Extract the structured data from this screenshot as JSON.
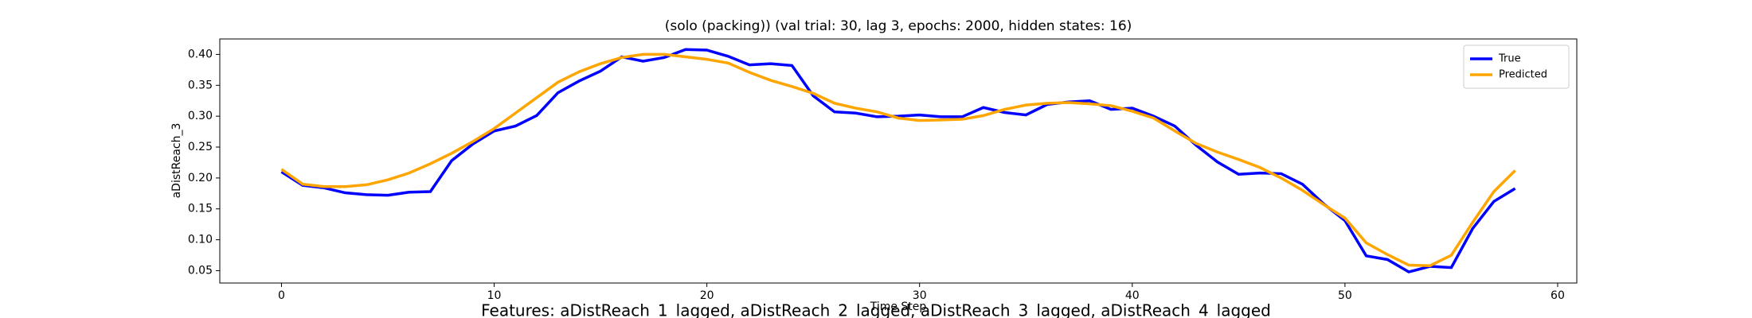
{
  "chart_data": {
    "type": "line",
    "title": "(solo (packing)) (val trial: 30, lag 3, epochs: 2000, hidden states: 16)",
    "xlabel": "Time Step",
    "ylabel": "aDistReach_3",
    "footer": "Features: aDistReach_1_lagged, aDistReach_2_lagged, aDistReach_3_lagged, aDistReach_4_lagged",
    "x": [
      0,
      1,
      2,
      3,
      4,
      5,
      6,
      7,
      8,
      9,
      10,
      11,
      12,
      13,
      14,
      15,
      16,
      17,
      18,
      19,
      20,
      21,
      22,
      23,
      24,
      25,
      26,
      27,
      28,
      29,
      30,
      31,
      32,
      33,
      34,
      35,
      36,
      37,
      38,
      39,
      40,
      41,
      42,
      43,
      44,
      45,
      46,
      47,
      48,
      49,
      50,
      51,
      52,
      53,
      54,
      55,
      56,
      57,
      58
    ],
    "series": [
      {
        "name": "True",
        "color": "#0000ff",
        "values": [
          0.21,
          0.188,
          0.184,
          0.176,
          0.173,
          0.172,
          0.177,
          0.178,
          0.228,
          0.255,
          0.276,
          0.284,
          0.301,
          0.338,
          0.357,
          0.373,
          0.396,
          0.389,
          0.395,
          0.408,
          0.407,
          0.397,
          0.383,
          0.385,
          0.382,
          0.333,
          0.307,
          0.305,
          0.299,
          0.3,
          0.302,
          0.299,
          0.299,
          0.314,
          0.306,
          0.302,
          0.319,
          0.323,
          0.325,
          0.311,
          0.313,
          0.3,
          0.284,
          0.253,
          0.226,
          0.206,
          0.208,
          0.207,
          0.19,
          0.158,
          0.131,
          0.074,
          0.068,
          0.048,
          0.057,
          0.055,
          0.118,
          0.162,
          0.183
        ]
      },
      {
        "name": "Predicted",
        "color": "#ffa500",
        "values": [
          0.214,
          0.19,
          0.186,
          0.186,
          0.189,
          0.197,
          0.208,
          0.223,
          0.24,
          0.259,
          0.28,
          0.305,
          0.33,
          0.355,
          0.372,
          0.385,
          0.395,
          0.4,
          0.4,
          0.396,
          0.392,
          0.386,
          0.371,
          0.358,
          0.348,
          0.337,
          0.321,
          0.313,
          0.307,
          0.297,
          0.293,
          0.294,
          0.295,
          0.301,
          0.311,
          0.318,
          0.321,
          0.322,
          0.32,
          0.317,
          0.308,
          0.297,
          0.276,
          0.256,
          0.242,
          0.23,
          0.217,
          0.2,
          0.18,
          0.157,
          0.135,
          0.095,
          0.076,
          0.059,
          0.058,
          0.075,
          0.128,
          0.178,
          0.212
        ]
      }
    ],
    "xlim": [
      -2.9,
      60.9
    ],
    "xticks": [
      0,
      10,
      20,
      30,
      40,
      50,
      60
    ],
    "ylim": [
      0.03,
      0.425
    ],
    "yticks": [
      0.05,
      {
        "value": 0.1,
        "label": "0.10"
      },
      0.15,
      {
        "value": 0.2,
        "label": "0.20"
      },
      0.25,
      {
        "value": 0.3,
        "label": "0.30"
      },
      0.35,
      {
        "value": 0.4,
        "label": "0.40"
      }
    ],
    "legend": "upper right"
  }
}
